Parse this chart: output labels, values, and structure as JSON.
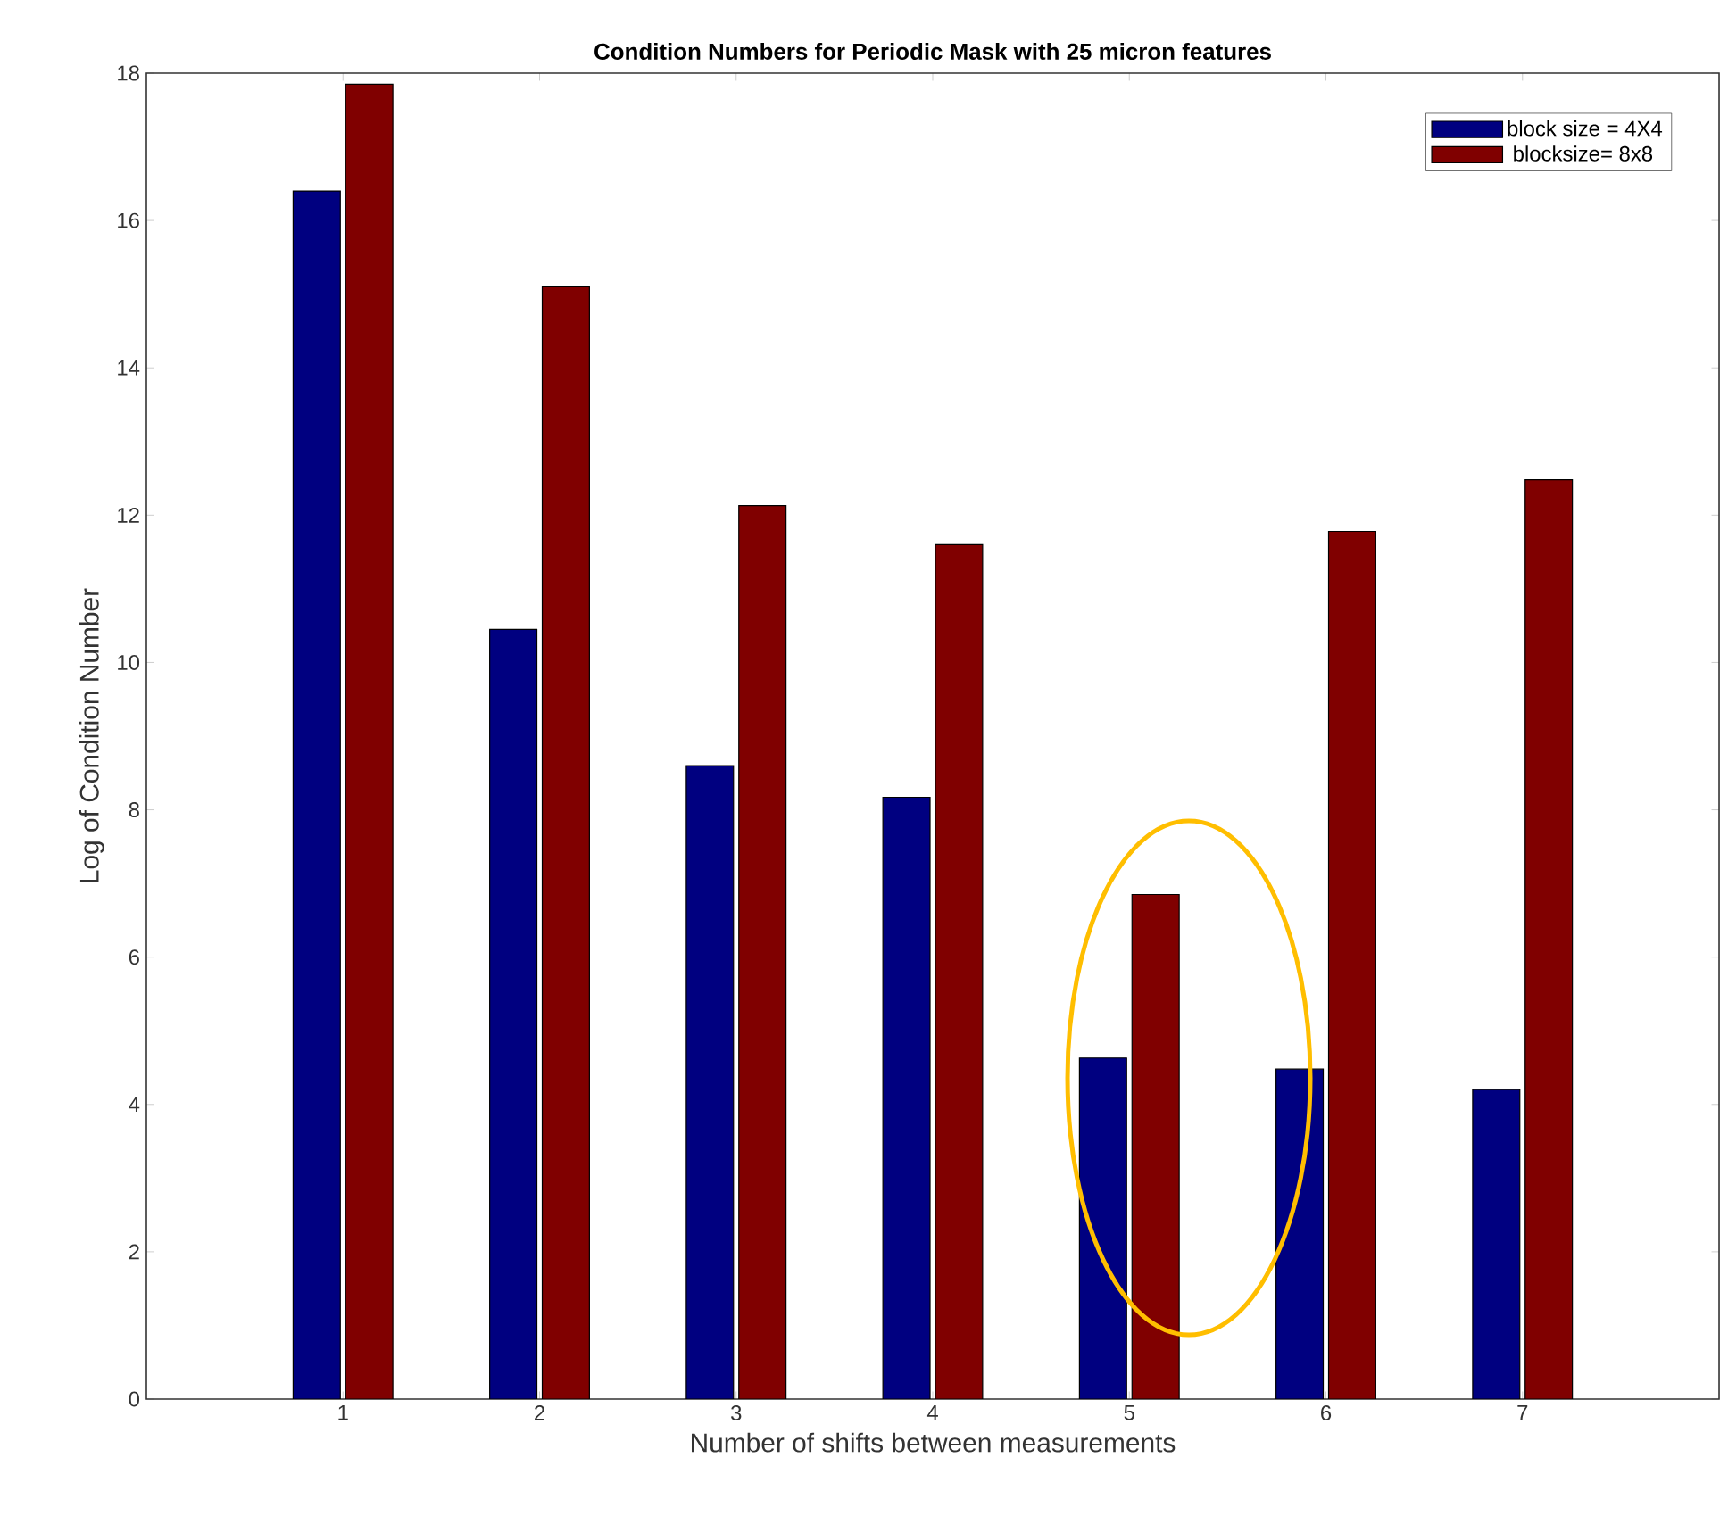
{
  "chart_data": {
    "type": "bar",
    "title": "Condition Numbers for Periodic Mask with 25 micron features",
    "xlabel": "Number of shifts between measurements",
    "ylabel": "Log of Condition Number",
    "categories": [
      "1",
      "2",
      "3",
      "4",
      "5",
      "6",
      "7"
    ],
    "series": [
      {
        "name": "block size = 4X4",
        "color": "#000080",
        "values": [
          16.4,
          10.45,
          8.6,
          8.17,
          4.63,
          4.48,
          4.2
        ]
      },
      {
        "name": " blocksize= 8x8",
        "color": "#800000",
        "values": [
          17.85,
          15.1,
          12.13,
          11.6,
          6.85,
          11.78,
          12.48
        ]
      }
    ],
    "ylim": [
      0,
      18
    ],
    "yticks": [
      0,
      2,
      4,
      6,
      8,
      10,
      12,
      14,
      16,
      18
    ],
    "legend": "top right",
    "grid": false
  }
}
